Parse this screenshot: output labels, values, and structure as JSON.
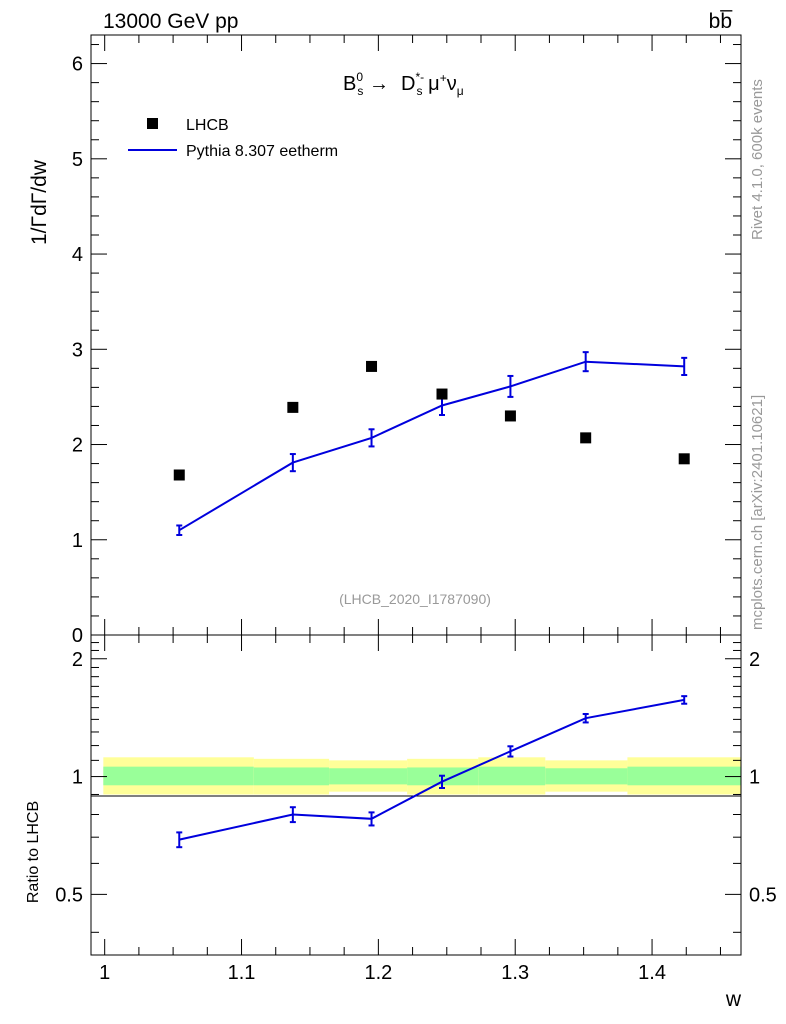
{
  "header": {
    "energy_label": "13000 GeV pp",
    "process_label": "bb̅"
  },
  "side_labels": {
    "rivet": "Rivet 4.1.0,  600k events",
    "mcplots": "mcplots.cern.ch [arXiv:2401.10621]"
  },
  "analysis_id": "(LHCB_2020_I1787090)",
  "colors": {
    "mc": "#0000dd",
    "data": "#000000",
    "band_inner": "#99ff99",
    "band_outer": "#ffff99",
    "watermark": "#999999"
  },
  "chart_data": [
    {
      "type": "scatter",
      "panel": "main",
      "title": "B_s^0 → D_s^{*-} μ^+ ν_μ",
      "title_parts": {
        "b": "B",
        "b_sub": "s",
        "b_sup": "0",
        "arrow": "→",
        "d": "D",
        "d_sub": "s",
        "d_sup": "*-",
        "mu": "μ",
        "mu_sup": "+",
        "nu": "ν",
        "nu_sub": "μ"
      },
      "xlabel": "w",
      "ylabel": "1/ΓdΓ/dw",
      "xlim": [
        0.99,
        1.465
      ],
      "ylim": [
        0,
        6.3
      ],
      "yticks": [
        0,
        1,
        2,
        3,
        4,
        5,
        6
      ],
      "legend": {
        "position": "top-left",
        "entries": [
          "LHCB",
          "Pythia 8.307 eetherm"
        ]
      },
      "series": [
        {
          "name": "LHCB",
          "style": "markers",
          "x": [
            1.0545,
            1.1375,
            1.195,
            1.2465,
            1.2965,
            1.3515,
            1.4235
          ],
          "y": [
            1.68,
            2.39,
            2.82,
            2.53,
            2.3,
            2.07,
            1.85
          ]
        },
        {
          "name": "Pythia 8.307 eetherm",
          "style": "line",
          "x": [
            1.0545,
            1.1375,
            1.195,
            1.2465,
            1.2965,
            1.3515,
            1.4235
          ],
          "y": [
            1.1,
            1.81,
            2.07,
            2.41,
            2.61,
            2.87,
            2.82
          ],
          "yerr": [
            0.05,
            0.09,
            0.09,
            0.1,
            0.11,
            0.1,
            0.09
          ]
        }
      ]
    },
    {
      "type": "line",
      "panel": "ratio",
      "ylabel": "Ratio to LHCB",
      "xlabel": "w",
      "xlim": [
        0.99,
        1.465
      ],
      "ylim": [
        0.35,
        2.3
      ],
      "xticks": [
        1,
        1.1,
        1.2,
        1.3,
        1.4
      ],
      "xtick_labels": [
        "1",
        "1.1",
        "1.2",
        "1.3",
        "1.4"
      ],
      "yticks": [
        0.5,
        1,
        2
      ],
      "ytick_labels": [
        "0.5",
        "1",
        "2"
      ],
      "bands": [
        {
          "x0": 0.999,
          "x1": 1.109,
          "inner": [
            0.95,
            1.06
          ],
          "outer": [
            0.9,
            1.12
          ]
        },
        {
          "x0": 1.109,
          "x1": 1.164,
          "inner": [
            0.95,
            1.055
          ],
          "outer": [
            0.9,
            1.11
          ]
        },
        {
          "x0": 1.164,
          "x1": 1.221,
          "inner": [
            0.955,
            1.05
          ],
          "outer": [
            0.915,
            1.1
          ]
        },
        {
          "x0": 1.221,
          "x1": 1.273,
          "inner": [
            0.95,
            1.055
          ],
          "outer": [
            0.9,
            1.11
          ]
        },
        {
          "x0": 1.273,
          "x1": 1.322,
          "inner": [
            0.95,
            1.06
          ],
          "outer": [
            0.9,
            1.12
          ]
        },
        {
          "x0": 1.322,
          "x1": 1.382,
          "inner": [
            0.955,
            1.05
          ],
          "outer": [
            0.915,
            1.1
          ]
        },
        {
          "x0": 1.382,
          "x1": 1.465,
          "inner": [
            0.95,
            1.06
          ],
          "outer": [
            0.9,
            1.12
          ]
        }
      ],
      "series": [
        {
          "name": "Pythia 8.307 eetherm / LHCB",
          "x": [
            1.0545,
            1.1375,
            1.195,
            1.2465,
            1.2965,
            1.3515,
            1.4235
          ],
          "y": [
            0.69,
            0.8,
            0.78,
            0.97,
            1.16,
            1.41,
            1.57
          ],
          "yerr": [
            0.03,
            0.035,
            0.03,
            0.035,
            0.035,
            0.035,
            0.035
          ]
        }
      ]
    }
  ]
}
